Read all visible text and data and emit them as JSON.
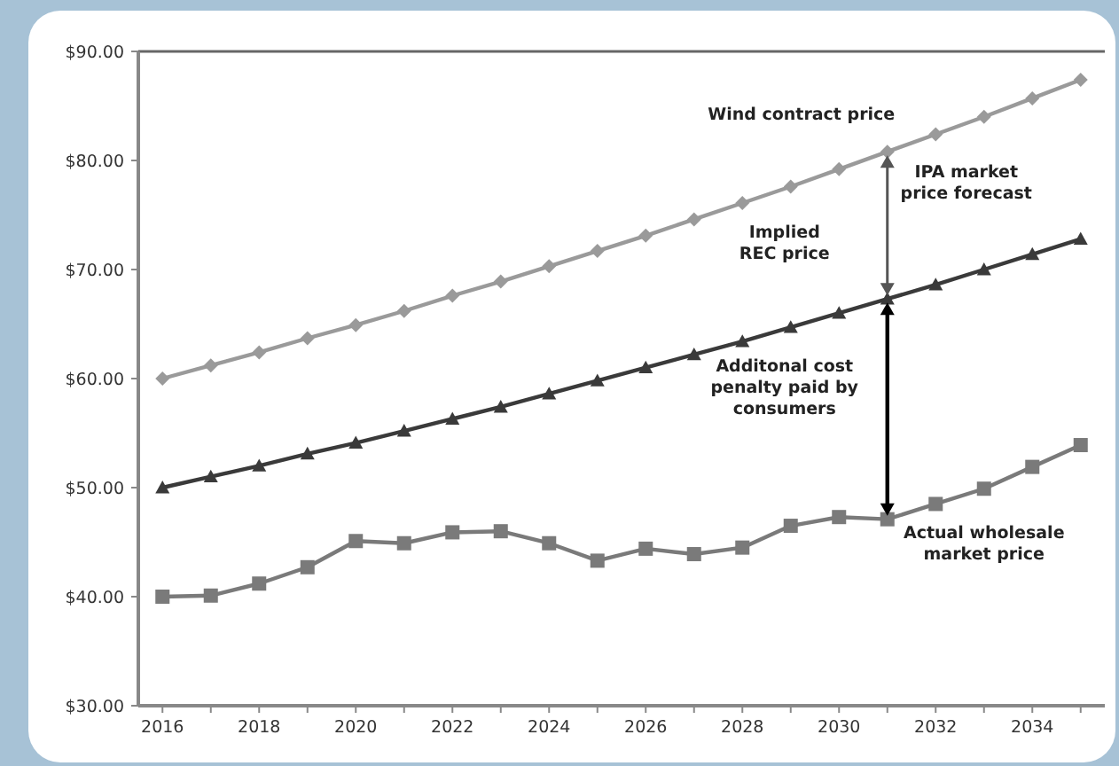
{
  "chart_data": {
    "type": "line",
    "x": [
      2016,
      2017,
      2018,
      2019,
      2020,
      2021,
      2022,
      2023,
      2024,
      2025,
      2026,
      2027,
      2028,
      2029,
      2030,
      2031,
      2032,
      2033,
      2034,
      2035
    ],
    "series": [
      {
        "name": "Wind contract price",
        "color": "#9a9a9a",
        "marker": "diamond",
        "values": [
          60,
          61.2,
          62.4,
          63.7,
          64.9,
          66.2,
          67.6,
          68.9,
          70.3,
          71.7,
          73.1,
          74.6,
          76.1,
          77.6,
          79.2,
          80.8,
          82.4,
          84.0,
          85.7,
          87.4
        ]
      },
      {
        "name": "IPA market price forecast",
        "color": "#3a3a3a",
        "marker": "triangle",
        "values": [
          50,
          51,
          52,
          53.1,
          54.1,
          55.2,
          56.3,
          57.4,
          58.6,
          59.8,
          61,
          62.2,
          63.4,
          64.7,
          66,
          67.3,
          68.6,
          70,
          71.4,
          72.8
        ]
      },
      {
        "name": "Actual wholesale market price",
        "color": "#7a7a7a",
        "marker": "square",
        "values": [
          40,
          40.1,
          41.2,
          42.7,
          45.1,
          44.9,
          45.9,
          46,
          44.9,
          43.3,
          44.4,
          43.9,
          44.5,
          46.5,
          47.3,
          47.1,
          48.5,
          49.9,
          51.9,
          53.9
        ]
      }
    ],
    "xlim": [
      2015.5,
      2035.5
    ],
    "xticks": [
      2016,
      {
        "value": 2017,
        "label": null
      },
      2018,
      {
        "value": 2019,
        "label": null
      },
      2020,
      {
        "value": 2021,
        "label": null
      },
      2022,
      {
        "value": 2023,
        "label": null
      },
      2024,
      {
        "value": 2025,
        "label": null
      },
      2026,
      {
        "value": 2027,
        "label": null
      },
      2028,
      {
        "value": 2029,
        "label": null
      },
      2030,
      {
        "value": 2031,
        "label": null
      },
      2032,
      {
        "value": 2033,
        "label": null
      },
      2034,
      {
        "value": 2035,
        "label": null
      }
    ],
    "ylim": [
      30,
      90
    ],
    "yticks": [
      {
        "value": 30,
        "label": "$30.00"
      },
      {
        "value": 40,
        "label": "$40.00"
      },
      {
        "value": 50,
        "label": "$50.00"
      },
      {
        "value": 60,
        "label": "$60.00"
      },
      {
        "value": 70,
        "label": "$70.00"
      },
      {
        "value": 80,
        "label": "$80.00"
      },
      {
        "value": 90,
        "label": "$90.00"
      }
    ],
    "grid": false,
    "annotations": [
      "Implied REC price",
      "Additonal cost penalty paid by consumers"
    ]
  }
}
